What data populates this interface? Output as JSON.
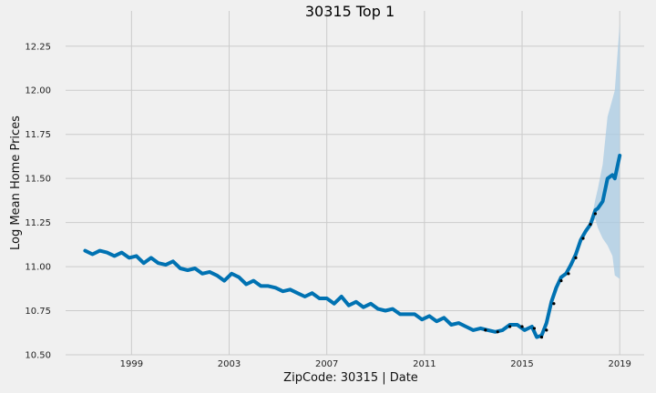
{
  "chart_data": {
    "type": "line",
    "title": "30315 Top 1",
    "xlabel": "ZipCode: 30315 | Date",
    "ylabel": "Log Mean Home Prices",
    "xlim": [
      1996.3,
      2020.0
    ],
    "ylim": [
      10.5,
      12.45
    ],
    "x_ticks": [
      1999,
      2003,
      2007,
      2011,
      2015,
      2019
    ],
    "y_ticks": [
      10.5,
      10.75,
      11.0,
      11.25,
      11.5,
      11.75,
      12.0,
      12.25
    ],
    "grid": true,
    "colors": {
      "background": "#f0f0f0",
      "grid": "#cbcbcb",
      "forecast": "#0072b2",
      "observed": "#000000",
      "interval": "#a9cbe3"
    },
    "forecast": {
      "x": [
        1997.1,
        1997.4,
        1997.7,
        1998.0,
        1998.3,
        1998.6,
        1998.9,
        1999.2,
        1999.5,
        1999.8,
        2000.1,
        2000.4,
        2000.7,
        2001.0,
        2001.3,
        2001.6,
        2001.9,
        2002.2,
        2002.5,
        2002.8,
        2003.1,
        2003.4,
        2003.7,
        2004.0,
        2004.3,
        2004.6,
        2004.9,
        2005.2,
        2005.5,
        2005.8,
        2006.1,
        2006.4,
        2006.7,
        2007.0,
        2007.3,
        2007.6,
        2007.9,
        2008.2,
        2008.5,
        2008.8,
        2009.1,
        2009.4,
        2009.7,
        2010.0,
        2010.3,
        2010.6,
        2010.9,
        2011.2,
        2011.5,
        2011.8,
        2012.1,
        2012.4,
        2012.7,
        2013.0,
        2013.3,
        2013.6,
        2013.9,
        2014.2,
        2014.5,
        2014.8,
        2015.1,
        2015.4,
        2015.6,
        2015.8,
        2016.0,
        2016.2,
        2016.4,
        2016.6,
        2016.8,
        2017.0,
        2017.2,
        2017.4,
        2017.6,
        2017.8,
        2018.0,
        2018.1,
        2018.3,
        2018.5,
        2018.7,
        2018.8,
        2019.0
      ],
      "y": [
        11.09,
        11.07,
        11.09,
        11.08,
        11.06,
        11.08,
        11.05,
        11.06,
        11.02,
        11.05,
        11.02,
        11.01,
        11.03,
        10.99,
        10.98,
        10.99,
        10.96,
        10.97,
        10.95,
        10.92,
        10.96,
        10.94,
        10.9,
        10.92,
        10.89,
        10.89,
        10.88,
        10.86,
        10.87,
        10.85,
        10.83,
        10.85,
        10.82,
        10.82,
        10.79,
        10.83,
        10.78,
        10.8,
        10.77,
        10.79,
        10.76,
        10.75,
        10.76,
        10.73,
        10.73,
        10.73,
        10.7,
        10.72,
        10.69,
        10.71,
        10.67,
        10.68,
        10.66,
        10.64,
        10.65,
        10.64,
        10.63,
        10.64,
        10.67,
        10.67,
        10.64,
        10.66,
        10.6,
        10.61,
        10.68,
        10.8,
        10.88,
        10.94,
        10.96,
        11.01,
        11.07,
        11.15,
        11.2,
        11.24,
        11.32,
        11.33,
        11.37,
        11.5,
        11.52,
        11.5,
        11.63
      ],
      "lower": [
        11.09,
        11.07,
        11.09,
        11.08,
        11.06,
        11.08,
        11.05,
        11.06,
        11.02,
        11.05,
        11.02,
        11.01,
        11.03,
        10.99,
        10.98,
        10.99,
        10.96,
        10.97,
        10.95,
        10.92,
        10.96,
        10.94,
        10.9,
        10.92,
        10.89,
        10.89,
        10.88,
        10.86,
        10.87,
        10.85,
        10.83,
        10.85,
        10.82,
        10.82,
        10.79,
        10.83,
        10.78,
        10.8,
        10.77,
        10.79,
        10.76,
        10.75,
        10.76,
        10.73,
        10.73,
        10.73,
        10.7,
        10.72,
        10.69,
        10.71,
        10.67,
        10.68,
        10.66,
        10.64,
        10.65,
        10.64,
        10.63,
        10.64,
        10.67,
        10.67,
        10.64,
        10.66,
        10.6,
        10.61,
        10.68,
        10.8,
        10.88,
        10.94,
        10.96,
        11.01,
        11.07,
        11.15,
        11.2,
        11.24,
        11.27,
        11.22,
        11.16,
        11.12,
        11.06,
        10.95,
        10.93
      ],
      "upper": [
        11.09,
        11.07,
        11.09,
        11.08,
        11.06,
        11.08,
        11.05,
        11.06,
        11.02,
        11.05,
        11.02,
        11.01,
        11.03,
        10.99,
        10.98,
        10.99,
        10.96,
        10.97,
        10.95,
        10.92,
        10.96,
        10.94,
        10.9,
        10.92,
        10.89,
        10.89,
        10.88,
        10.86,
        10.87,
        10.85,
        10.83,
        10.85,
        10.82,
        10.82,
        10.79,
        10.83,
        10.78,
        10.8,
        10.77,
        10.79,
        10.76,
        10.75,
        10.76,
        10.73,
        10.73,
        10.73,
        10.7,
        10.72,
        10.69,
        10.71,
        10.67,
        10.68,
        10.66,
        10.64,
        10.65,
        10.64,
        10.63,
        10.64,
        10.67,
        10.67,
        10.64,
        10.66,
        10.6,
        10.61,
        10.68,
        10.8,
        10.88,
        10.94,
        10.96,
        11.01,
        11.07,
        11.15,
        11.2,
        11.24,
        11.38,
        11.44,
        11.58,
        11.85,
        11.95,
        12.0,
        12.38
      ]
    },
    "observed": {
      "x": [
        2013.5,
        2014.0,
        2014.5,
        2015.0,
        2015.5,
        2015.8,
        2016.0,
        2016.3,
        2016.6,
        2016.9,
        2017.2,
        2017.5,
        2017.8,
        2018.0
      ],
      "y": [
        10.64,
        10.63,
        10.66,
        10.66,
        10.65,
        10.6,
        10.64,
        10.79,
        10.92,
        10.96,
        11.05,
        11.16,
        11.24,
        11.3
      ]
    }
  }
}
